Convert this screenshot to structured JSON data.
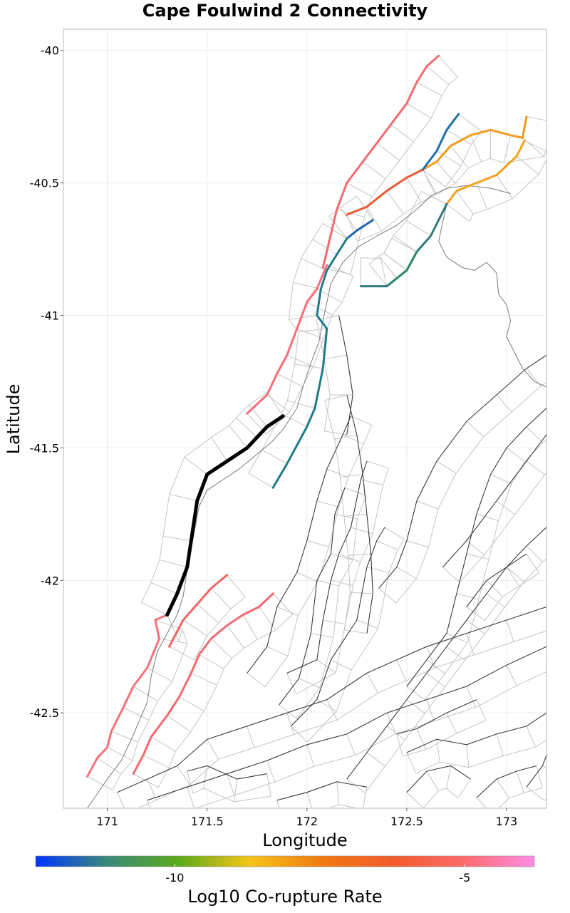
{
  "chart_data": {
    "type": "map",
    "title": "Cape Foulwind 2 Connectivity",
    "xlabel": "Longitude",
    "ylabel": "Latitude",
    "xlim": [
      170.78,
      173.2
    ],
    "ylim": [
      -42.86,
      -39.92
    ],
    "xticks": [
      171,
      171.5,
      172,
      172.5,
      173
    ],
    "xtick_labels": [
      "171",
      "171.5",
      "172",
      "172.5",
      "173"
    ],
    "yticks": [
      -40,
      -40.5,
      -41,
      -41.5,
      -42,
      -42.5
    ],
    "ytick_labels": [
      "-40",
      "-40.5",
      "-41",
      "-41.5",
      "-42",
      "-42.5"
    ],
    "grid": true,
    "colorbar": {
      "title": "Log10 Co-rupture Rate",
      "range": [
        -12.4,
        -3.8
      ],
      "ticks": [
        -10,
        -5
      ],
      "tick_labels": [
        "-10",
        "-5"
      ],
      "stops": [
        "#0033ff",
        "#3a8a7a",
        "#5aaa1a",
        "#f5c518",
        "#f27b12",
        "#f25a2a",
        "#ff6a6a",
        "#ff8ce8"
      ]
    },
    "target_fault": {
      "name": "Cape Foulwind 2",
      "color": "#000000",
      "points": [
        [
          171.88,
          -41.38
        ],
        [
          171.8,
          -41.42
        ],
        [
          171.75,
          -41.46
        ],
        [
          171.7,
          -41.5
        ],
        [
          171.6,
          -41.55
        ],
        [
          171.5,
          -41.6
        ],
        [
          171.45,
          -41.7
        ],
        [
          171.42,
          -41.85
        ],
        [
          171.4,
          -41.95
        ],
        [
          171.35,
          -42.05
        ],
        [
          171.3,
          -42.13
        ]
      ]
    },
    "connected_faults": [
      {
        "log10_rate": -4.4,
        "color": "#f7707a",
        "points": [
          [
            170.9,
            -42.74
          ],
          [
            170.95,
            -42.67
          ],
          [
            171.0,
            -42.63
          ],
          [
            171.02,
            -42.57
          ],
          [
            171.08,
            -42.48
          ],
          [
            171.13,
            -42.4
          ],
          [
            171.2,
            -42.33
          ],
          [
            171.26,
            -42.22
          ],
          [
            171.24,
            -42.15
          ],
          [
            171.3,
            -42.13
          ]
        ]
      },
      {
        "log10_rate": -4.5,
        "color": "#f46a6e",
        "points": [
          [
            171.13,
            -42.73
          ],
          [
            171.18,
            -42.66
          ],
          [
            171.22,
            -42.59
          ],
          [
            171.3,
            -42.51
          ],
          [
            171.36,
            -42.44
          ],
          [
            171.42,
            -42.35
          ],
          [
            171.46,
            -42.28
          ],
          [
            171.52,
            -42.22
          ],
          [
            171.6,
            -42.17
          ],
          [
            171.68,
            -42.13
          ],
          [
            171.76,
            -42.1
          ],
          [
            171.83,
            -42.05
          ]
        ]
      },
      {
        "log10_rate": -4.7,
        "color": "#f26465",
        "points": [
          [
            171.31,
            -42.25
          ],
          [
            171.38,
            -42.15
          ],
          [
            171.45,
            -42.09
          ],
          [
            171.52,
            -42.03
          ],
          [
            171.6,
            -41.98
          ]
        ]
      },
      {
        "log10_rate": -4.5,
        "color": "#f76e78",
        "points": [
          [
            171.7,
            -41.37
          ],
          [
            171.8,
            -41.3
          ],
          [
            171.85,
            -41.22
          ],
          [
            171.9,
            -41.15
          ],
          [
            171.95,
            -41.05
          ],
          [
            172.0,
            -40.95
          ],
          [
            172.05,
            -40.9
          ],
          [
            172.1,
            -40.81
          ]
        ]
      },
      {
        "log10_rate": -4.6,
        "color": "#f46a6e",
        "points": [
          [
            172.08,
            -40.82
          ],
          [
            172.15,
            -40.6
          ],
          [
            172.2,
            -40.5
          ],
          [
            172.28,
            -40.42
          ],
          [
            172.35,
            -40.35
          ],
          [
            172.42,
            -40.28
          ],
          [
            172.5,
            -40.2
          ],
          [
            172.55,
            -40.12
          ],
          [
            172.6,
            -40.06
          ],
          [
            172.66,
            -40.02
          ]
        ]
      },
      {
        "log10_rate": -5.6,
        "color": "#f05a32",
        "points": [
          [
            172.2,
            -40.62
          ],
          [
            172.3,
            -40.59
          ],
          [
            172.4,
            -40.53
          ],
          [
            172.5,
            -40.48
          ],
          [
            172.58,
            -40.45
          ]
        ]
      },
      {
        "log10_rate": -6.5,
        "color": "#f39a1e",
        "points": [
          [
            172.58,
            -40.45
          ],
          [
            172.65,
            -40.42
          ],
          [
            172.72,
            -40.36
          ],
          [
            172.82,
            -40.32
          ],
          [
            172.92,
            -40.3
          ],
          [
            173.02,
            -40.32
          ],
          [
            173.08,
            -40.33
          ],
          [
            173.1,
            -40.25
          ]
        ]
      },
      {
        "log10_rate": -6.6,
        "color": "#f5a01c",
        "points": [
          [
            172.7,
            -40.58
          ],
          [
            172.75,
            -40.53
          ],
          [
            172.85,
            -40.5
          ],
          [
            172.95,
            -40.47
          ],
          [
            173.05,
            -40.4
          ],
          [
            173.09,
            -40.34
          ]
        ]
      },
      {
        "log10_rate": -11.0,
        "color": "#1f6fa5",
        "points": [
          [
            172.58,
            -40.45
          ],
          [
            172.65,
            -40.38
          ],
          [
            172.7,
            -40.3
          ],
          [
            172.76,
            -40.24
          ]
        ]
      },
      {
        "log10_rate": -11.3,
        "color": "#1a66b2",
        "points": [
          [
            172.33,
            -40.64
          ],
          [
            172.25,
            -40.68
          ],
          [
            172.2,
            -40.71
          ]
        ]
      },
      {
        "log10_rate": -10.8,
        "color": "#1f7a8a",
        "points": [
          [
            172.2,
            -40.71
          ],
          [
            172.15,
            -40.77
          ],
          [
            172.1,
            -40.83
          ],
          [
            172.07,
            -40.9
          ],
          [
            172.05,
            -41.0
          ],
          [
            172.1,
            -41.05
          ],
          [
            172.08,
            -41.2
          ],
          [
            172.04,
            -41.35
          ],
          [
            172.0,
            -41.42
          ],
          [
            171.9,
            -41.56
          ],
          [
            171.83,
            -41.65
          ]
        ]
      },
      {
        "log10_rate": -10.6,
        "color": "#2c7a80",
        "points": [
          [
            172.7,
            -40.58
          ],
          [
            172.62,
            -40.7
          ],
          [
            172.55,
            -40.76
          ],
          [
            172.5,
            -40.83
          ],
          [
            172.45,
            -40.86
          ],
          [
            172.4,
            -40.89
          ],
          [
            172.27,
            -40.89
          ]
        ]
      },
      {
        "log10_rate": -10.4,
        "color": "#2f8a6a",
        "points": [
          [
            172.55,
            -40.76
          ],
          [
            172.5,
            -40.83
          ],
          [
            172.45,
            -40.86
          ],
          [
            172.4,
            -40.89
          ]
        ]
      }
    ],
    "other_fault_traces": [
      [
        [
          171.9,
          -42.35
        ],
        [
          172.05,
          -42.3
        ],
        [
          172.08,
          -42.15
        ],
        [
          172.12,
          -42.0
        ],
        [
          172.16,
          -41.9
        ],
        [
          172.22,
          -41.8
        ],
        [
          172.27,
          -41.62
        ],
        [
          172.3,
          -41.55
        ]
      ],
      [
        [
          171.86,
          -42.47
        ],
        [
          171.96,
          -42.37
        ],
        [
          172.02,
          -42.2
        ],
        [
          172.05,
          -42.0
        ],
        [
          172.12,
          -41.9
        ],
        [
          172.14,
          -41.75
        ],
        [
          172.19,
          -41.65
        ]
      ],
      [
        [
          171.92,
          -42.55
        ],
        [
          172.05,
          -42.45
        ],
        [
          172.12,
          -42.3
        ],
        [
          172.25,
          -42.15
        ],
        [
          172.3,
          -41.95
        ],
        [
          172.35,
          -41.85
        ],
        [
          172.39,
          -41.8
        ]
      ],
      [
        [
          172.2,
          -41.3
        ],
        [
          172.25,
          -41.45
        ],
        [
          172.28,
          -41.6
        ],
        [
          172.3,
          -41.75
        ],
        [
          172.32,
          -41.9
        ],
        [
          172.33,
          -42.05
        ],
        [
          172.3,
          -42.2
        ]
      ],
      [
        [
          172.16,
          -41.0
        ],
        [
          172.2,
          -41.15
        ],
        [
          172.23,
          -41.3
        ],
        [
          172.2,
          -41.45
        ]
      ],
      [
        [
          171.7,
          -42.35
        ],
        [
          171.8,
          -42.25
        ],
        [
          171.85,
          -42.1
        ],
        [
          171.95,
          -41.97
        ],
        [
          172.0,
          -41.85
        ],
        [
          172.05,
          -41.7
        ],
        [
          172.1,
          -41.58
        ],
        [
          172.18,
          -41.45
        ],
        [
          172.22,
          -41.38
        ]
      ],
      [
        [
          172.2,
          -42.75
        ],
        [
          172.3,
          -42.65
        ],
        [
          172.4,
          -42.55
        ],
        [
          172.5,
          -42.45
        ],
        [
          172.6,
          -42.35
        ],
        [
          172.7,
          -42.25
        ],
        [
          172.8,
          -42.15
        ],
        [
          172.9,
          -42.05
        ],
        [
          173.0,
          -41.95
        ],
        [
          173.1,
          -41.87
        ],
        [
          173.2,
          -41.8
        ]
      ],
      [
        [
          172.5,
          -42.4
        ],
        [
          172.6,
          -42.3
        ],
        [
          172.7,
          -42.2
        ],
        [
          172.75,
          -42.05
        ],
        [
          172.8,
          -41.9
        ],
        [
          172.85,
          -41.75
        ],
        [
          172.92,
          -41.6
        ],
        [
          173.0,
          -41.5
        ],
        [
          173.1,
          -41.42
        ],
        [
          173.2,
          -41.35
        ]
      ],
      [
        [
          172.36,
          -42.03
        ],
        [
          172.45,
          -41.95
        ],
        [
          172.5,
          -41.85
        ],
        [
          172.55,
          -41.7
        ],
        [
          172.65,
          -41.55
        ],
        [
          172.8,
          -41.4
        ],
        [
          172.95,
          -41.3
        ],
        [
          173.1,
          -41.2
        ],
        [
          173.2,
          -41.15
        ]
      ],
      [
        [
          172.68,
          -41.95
        ],
        [
          172.8,
          -41.85
        ],
        [
          172.95,
          -41.7
        ],
        [
          173.1,
          -41.55
        ],
        [
          173.2,
          -41.45
        ]
      ],
      [
        [
          171.05,
          -42.8
        ],
        [
          171.2,
          -42.75
        ],
        [
          171.35,
          -42.7
        ],
        [
          171.5,
          -42.6
        ],
        [
          171.7,
          -42.55
        ],
        [
          171.9,
          -42.5
        ],
        [
          172.1,
          -42.45
        ],
        [
          172.3,
          -42.35
        ],
        [
          172.45,
          -42.3
        ],
        [
          172.6,
          -42.25
        ],
        [
          172.8,
          -42.2
        ],
        [
          173.0,
          -42.15
        ],
        [
          173.2,
          -42.1
        ]
      ],
      [
        [
          171.2,
          -42.83
        ],
        [
          171.4,
          -42.78
        ],
        [
          171.6,
          -42.73
        ],
        [
          171.8,
          -42.68
        ],
        [
          172.0,
          -42.62
        ],
        [
          172.2,
          -42.58
        ],
        [
          172.4,
          -42.5
        ],
        [
          172.6,
          -42.45
        ],
        [
          172.8,
          -42.4
        ],
        [
          173.0,
          -42.32
        ],
        [
          173.2,
          -42.25
        ]
      ],
      [
        [
          172.8,
          -42.1
        ],
        [
          172.9,
          -42.0
        ],
        [
          173.0,
          -41.95
        ],
        [
          173.1,
          -41.9
        ]
      ],
      [
        [
          171.4,
          -42.72
        ],
        [
          171.5,
          -42.7
        ],
        [
          171.65,
          -42.75
        ],
        [
          171.8,
          -42.73
        ]
      ],
      [
        [
          171.85,
          -42.83
        ],
        [
          172.0,
          -42.8
        ],
        [
          172.15,
          -42.76
        ],
        [
          172.3,
          -42.78
        ]
      ],
      [
        [
          172.5,
          -42.65
        ],
        [
          172.65,
          -42.6
        ],
        [
          172.8,
          -42.62
        ],
        [
          172.95,
          -42.58
        ],
        [
          173.1,
          -42.55
        ],
        [
          173.2,
          -42.5
        ]
      ],
      [
        [
          172.5,
          -42.8
        ],
        [
          172.6,
          -42.72
        ],
        [
          172.72,
          -42.7
        ],
        [
          172.82,
          -42.75
        ]
      ],
      [
        [
          172.85,
          -42.82
        ],
        [
          172.95,
          -42.75
        ],
        [
          173.05,
          -42.72
        ],
        [
          173.15,
          -42.7
        ]
      ],
      [
        [
          173.1,
          -42.78
        ],
        [
          173.18,
          -42.7
        ],
        [
          173.2,
          -42.66
        ]
      ],
      [
        [
          172.45,
          -42.58
        ],
        [
          172.55,
          -42.56
        ],
        [
          172.7,
          -42.5
        ],
        [
          172.85,
          -42.45
        ]
      ]
    ],
    "coastline": [
      [
        [
          170.9,
          -42.86
        ],
        [
          171.0,
          -42.75
        ],
        [
          171.07,
          -42.68
        ],
        [
          171.12,
          -42.6
        ],
        [
          171.16,
          -42.53
        ],
        [
          171.2,
          -42.46
        ],
        [
          171.22,
          -42.36
        ],
        [
          171.25,
          -42.27
        ],
        [
          171.3,
          -42.2
        ],
        [
          171.35,
          -42.13
        ],
        [
          171.38,
          -42.06
        ],
        [
          171.4,
          -41.96
        ],
        [
          171.42,
          -41.88
        ],
        [
          171.44,
          -41.8
        ],
        [
          171.46,
          -41.72
        ],
        [
          171.5,
          -41.66
        ],
        [
          171.58,
          -41.62
        ],
        [
          171.66,
          -41.58
        ],
        [
          171.74,
          -41.53
        ],
        [
          171.82,
          -41.48
        ],
        [
          171.88,
          -41.43
        ],
        [
          171.95,
          -41.35
        ],
        [
          171.98,
          -41.27
        ],
        [
          172.02,
          -41.18
        ],
        [
          172.06,
          -41.1
        ],
        [
          172.08,
          -41.02
        ],
        [
          172.1,
          -40.95
        ],
        [
          172.12,
          -40.88
        ],
        [
          172.18,
          -40.8
        ],
        [
          172.26,
          -40.74
        ],
        [
          172.35,
          -40.7
        ],
        [
          172.45,
          -40.66
        ],
        [
          172.55,
          -40.6
        ],
        [
          172.62,
          -40.55
        ],
        [
          172.7,
          -40.52
        ],
        [
          172.8,
          -40.51
        ],
        [
          172.92,
          -40.52
        ],
        [
          173.02,
          -40.54
        ]
      ],
      [
        [
          172.7,
          -40.58
        ],
        [
          172.68,
          -40.65
        ],
        [
          172.66,
          -40.72
        ],
        [
          172.7,
          -40.78
        ],
        [
          172.78,
          -40.82
        ],
        [
          172.84,
          -40.83
        ],
        [
          172.9,
          -40.8
        ],
        [
          172.95,
          -40.84
        ],
        [
          172.96,
          -40.92
        ],
        [
          173.0,
          -40.96
        ],
        [
          173.02,
          -41.02
        ],
        [
          173.0,
          -41.08
        ],
        [
          173.04,
          -41.14
        ],
        [
          173.08,
          -41.2
        ],
        [
          173.14,
          -41.25
        ],
        [
          173.2,
          -41.27
        ]
      ]
    ]
  }
}
